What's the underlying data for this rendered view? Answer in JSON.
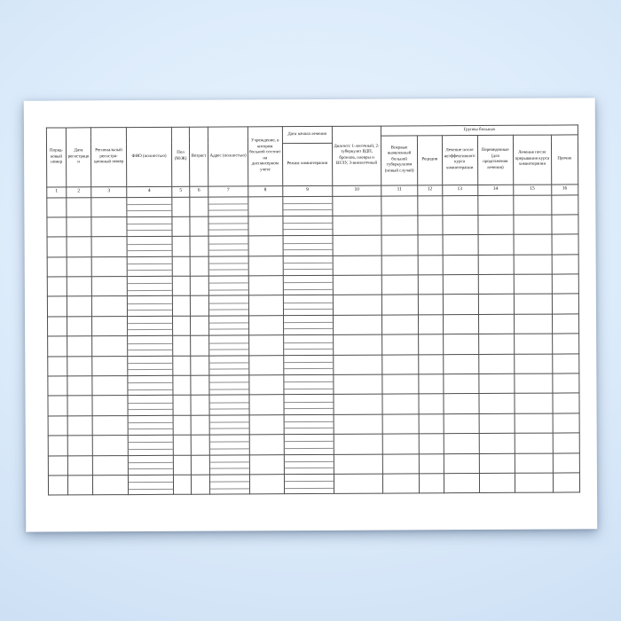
{
  "page": {
    "kind": "scanned blank registration journal form",
    "paper_color": "#ffffff",
    "background_color": "#d9eafa",
    "grid_line_color": "#4d4d4d",
    "sub_line_color": "#8c8c8c"
  },
  "table": {
    "groups": {
      "treatment_start": "Дата начала лечения",
      "patient_groups": "Группы больных"
    },
    "columns": [
      {
        "num": "1",
        "label": "Поряд- ковый номер"
      },
      {
        "num": "2",
        "label": "Дата регистрации"
      },
      {
        "num": "3",
        "label": "Региональный регистра- ционный номер"
      },
      {
        "num": "4",
        "label": "ФИО (полностью)"
      },
      {
        "num": "5",
        "label": "Пол (М/Ж)"
      },
      {
        "num": "6",
        "label": "Возраст"
      },
      {
        "num": "7",
        "label": "Адрес (полностью)"
      },
      {
        "num": "8",
        "label": "Учреждение, в котором больной состоит на диспансерном учете"
      },
      {
        "num": "9",
        "label": "Режим химиотерапии",
        "group": "Дата начала лечения"
      },
      {
        "num": "10",
        "label": "Диагноз: 1-легочный, 2-туберкулез ВДП, бронхов, плевры и ВГЛУ, 3-внелегочный"
      },
      {
        "num": "11",
        "label": "Впервые выявленный больной туберкулезом (новый случай)",
        "group": "Группы больных"
      },
      {
        "num": "12",
        "label": "Рецидив",
        "group": "Группы больных"
      },
      {
        "num": "13",
        "label": "Лечение после неэффективного курса химиотерапии",
        "group": "Группы больных"
      },
      {
        "num": "14",
        "label": "Переведенные (для продолжения лечения)",
        "group": "Группы больных"
      },
      {
        "num": "15",
        "label": "Лечение после прерывания курса химиотерапии",
        "group": "Группы больных"
      },
      {
        "num": "16",
        "label": "Прочие",
        "group": "Группы больных"
      }
    ],
    "body": {
      "row_count": 15,
      "ruled_columns": [
        4,
        7,
        9
      ],
      "cells_empty": true
    }
  }
}
